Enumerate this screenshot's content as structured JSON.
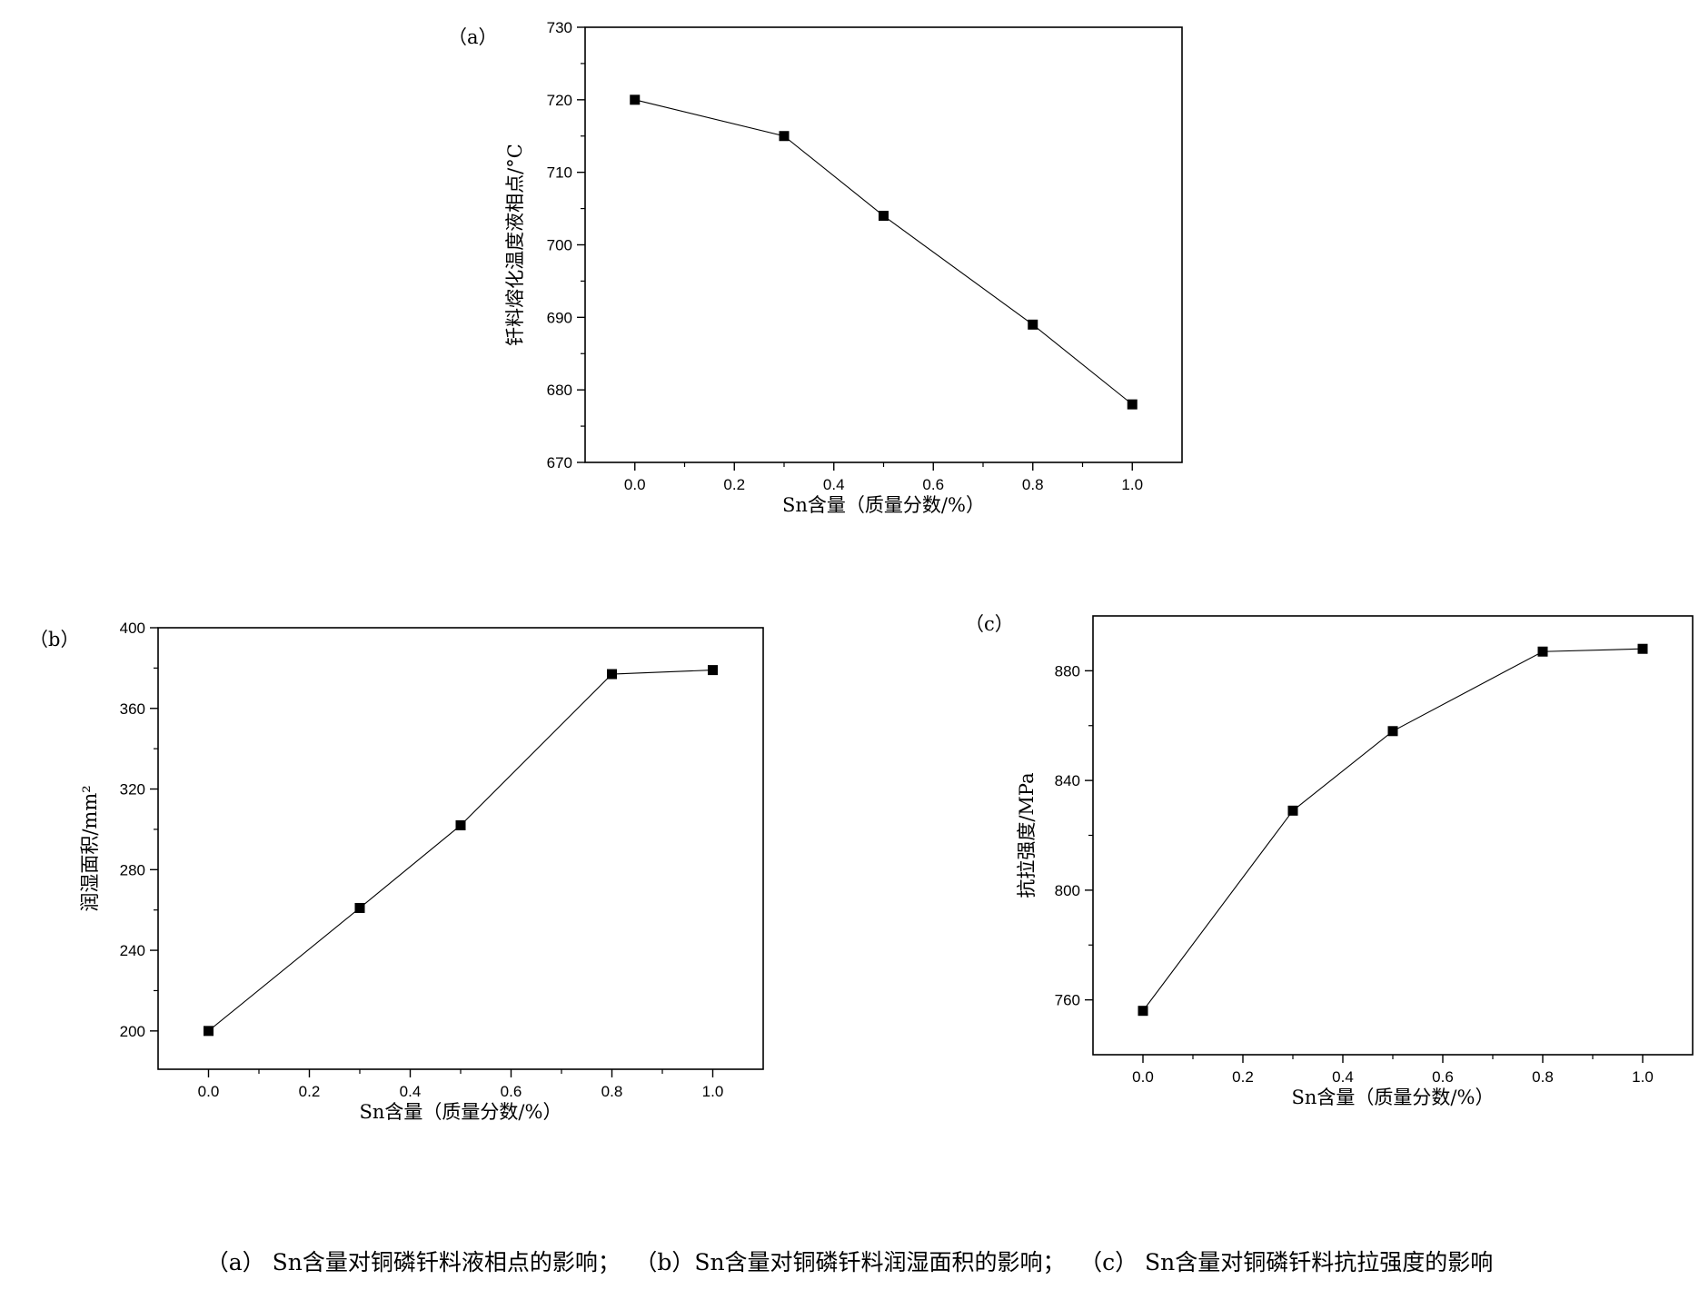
{
  "chart_data": [
    {
      "panel": "（a）",
      "type": "line",
      "x": [
        0.0,
        0.3,
        0.5,
        0.8,
        1.0
      ],
      "y": [
        720,
        715,
        704,
        689,
        678
      ],
      "xlabel": "Sn含量（质量分数/%）",
      "ylabel": "钎料熔化温度液相点/°C",
      "xlim": [
        -0.1,
        1.1
      ],
      "ylim": [
        670,
        730
      ],
      "xticks": [
        0.0,
        0.2,
        0.4,
        0.6,
        0.8,
        1.0
      ],
      "yticks": [
        670,
        680,
        690,
        700,
        710,
        720,
        730
      ],
      "xtick_labels": [
        "0.0",
        "0.2",
        "0.4",
        "0.6",
        "0.8",
        "1.0"
      ],
      "ytick_labels": [
        "670",
        "680",
        "690",
        "700",
        "710",
        "720",
        "730"
      ],
      "marker": "square",
      "grid": false
    },
    {
      "panel": "（b）",
      "type": "line",
      "x": [
        0.0,
        0.3,
        0.5,
        0.8,
        1.0
      ],
      "y": [
        200,
        261,
        302,
        377,
        379
      ],
      "xlabel": "Sn含量（质量分数/%）",
      "ylabel": "润湿面积/mm²",
      "xlim": [
        -0.1,
        1.1
      ],
      "ylim": [
        181,
        400
      ],
      "xticks": [
        0.0,
        0.2,
        0.4,
        0.6,
        0.8,
        1.0
      ],
      "yticks": [
        200,
        240,
        280,
        320,
        360,
        400
      ],
      "xtick_labels": [
        "0.0",
        "0.2",
        "0.4",
        "0.6",
        "0.8",
        "1.0"
      ],
      "ytick_labels": [
        "200",
        "240",
        "280",
        "320",
        "360",
        "400"
      ],
      "marker": "square",
      "grid": false
    },
    {
      "panel": "（c）",
      "type": "line",
      "x": [
        0.0,
        0.3,
        0.5,
        0.8,
        1.0
      ],
      "y": [
        756,
        829,
        858,
        887,
        888
      ],
      "xlabel": "Sn含量（质量分数/%）",
      "ylabel": "抗拉强度/MPa",
      "xlim": [
        -0.1,
        1.1
      ],
      "ylim": [
        740,
        900
      ],
      "xticks": [
        0.0,
        0.2,
        0.4,
        0.6,
        0.8,
        1.0
      ],
      "yticks": [
        760,
        800,
        840,
        880
      ],
      "xtick_labels": [
        "0.0",
        "0.2",
        "0.4",
        "0.6",
        "0.8",
        "1.0"
      ],
      "ytick_labels": [
        "760",
        "800",
        "840",
        "880"
      ],
      "marker": "square",
      "grid": false
    }
  ],
  "caption": {
    "a": "（a） Sn含量对铜磷钎料液相点的影响；",
    "b": "（b）Sn含量对铜磷钎料润湿面积的影响；",
    "c": "（c） Sn含量对铜磷钎料抗拉强度的影响"
  }
}
